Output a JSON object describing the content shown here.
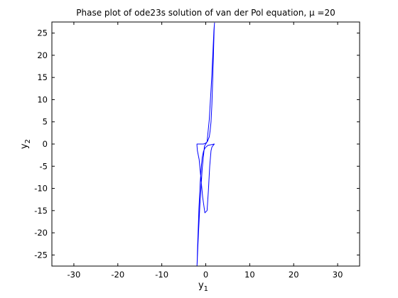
{
  "chart_data": {
    "type": "line",
    "title": "Phase plot of ode23s solution of van der Pol equation, μ =20",
    "xlabel": {
      "base": "y",
      "sub": "1"
    },
    "ylabel": {
      "base": "y",
      "sub": "2"
    },
    "xlim": [
      -35,
      35
    ],
    "ylim": [
      -27.5,
      27.5
    ],
    "xticks": [
      -30,
      -20,
      -10,
      0,
      10,
      20,
      30
    ],
    "yticks": [
      -25,
      -20,
      -15,
      -10,
      -5,
      0,
      5,
      10,
      15,
      20,
      25
    ],
    "grid": false,
    "legend": "none",
    "series": [
      {
        "color": "#0000ff",
        "x": [
          2.0,
          1.9,
          1.5,
          0.5,
          -0.1,
          -0.5,
          -0.8,
          -1.0,
          -1.25,
          -1.4,
          -1.55,
          -1.65,
          -1.8,
          -1.9,
          -1.95,
          -2.0,
          -2.0,
          -1.95,
          -1.9,
          -1.7,
          -1.35,
          -0.8,
          -0.3,
          0.3,
          0.8,
          1.3,
          1.6,
          1.85,
          1.95,
          2.0,
          2.0,
          1.95,
          1.9,
          1.8,
          1.6,
          1.4,
          1.2,
          1.0,
          0.8,
          0.4,
          0.0,
          -0.5,
          -1.1,
          -1.5,
          -1.85,
          -2.0,
          -2.0,
          -1.9,
          -1.5,
          -0.7,
          -0.2,
          0.3,
          0.6,
          0.9,
          1.2,
          1.4,
          1.6,
          1.8,
          1.9,
          2.0
        ],
        "y": [
          0.0,
          0.0,
          -0.1,
          -0.3,
          -0.8,
          -1.6,
          -3.0,
          -5.0,
          -8.5,
          -11.5,
          -14.5,
          -17.5,
          -21.5,
          -24.5,
          -26.5,
          -27.5,
          -27.5,
          -26.8,
          -25.5,
          -21.0,
          -14.0,
          -5.5,
          -0.5,
          0.5,
          5.5,
          14.0,
          20.0,
          25.5,
          26.8,
          27.3,
          27.3,
          26.8,
          25.5,
          22.0,
          15.0,
          9.0,
          5.0,
          3.0,
          1.6,
          0.6,
          0.2,
          0.0,
          0.0,
          0.0,
          0.0,
          0.0,
          -0.3,
          -1.5,
          -3.5,
          -12.0,
          -15.5,
          -15.0,
          -10.5,
          -5.0,
          -1.5,
          -0.7,
          -0.4,
          -0.2,
          -0.05,
          0.0
        ]
      }
    ]
  }
}
